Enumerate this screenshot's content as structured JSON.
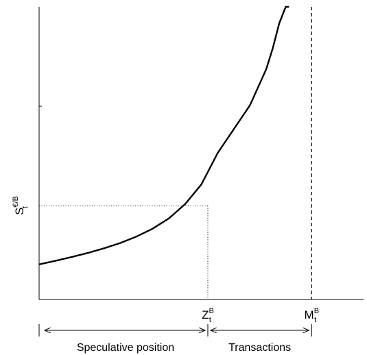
{
  "chart_data": {
    "type": "line",
    "title": "",
    "xlabel": "",
    "ylabel": {
      "main": "S",
      "sup": "€/B",
      "sub": "t"
    },
    "grid": false,
    "xlim": [
      0,
      1.0
    ],
    "ylim": [
      0,
      1.0
    ],
    "series": [
      {
        "x": [
          0,
          0.05,
          0.1,
          0.15,
          0.2,
          0.25,
          0.3,
          0.35,
          0.4,
          0.45,
          0.5,
          0.55,
          0.6,
          0.65,
          0.7,
          0.72,
          0.74,
          0.76,
          0.77
        ],
        "y": [
          0.12,
          0.132,
          0.145,
          0.159,
          0.175,
          0.193,
          0.215,
          0.242,
          0.277,
          0.326,
          0.393,
          0.5,
          0.582,
          0.664,
          0.787,
          0.858,
          0.943,
          1.0,
          1.0
        ]
      }
    ],
    "reference_lines": {
      "dotted_horizontal_y": 0.32,
      "dotted_vertical_x": 0.52,
      "dashed_vertical_x": 0.84
    },
    "x_markers": [
      {
        "main": "Z",
        "sup": "B",
        "sub": "t",
        "x": 0.52
      },
      {
        "main": "M",
        "sup": "B",
        "sub": "t",
        "x": 0.84
      }
    ],
    "spans": [
      {
        "label": "Speculative position",
        "from": 0,
        "to": 0.52
      },
      {
        "label": "Transactions",
        "from": 0.52,
        "to": 0.84
      }
    ]
  }
}
